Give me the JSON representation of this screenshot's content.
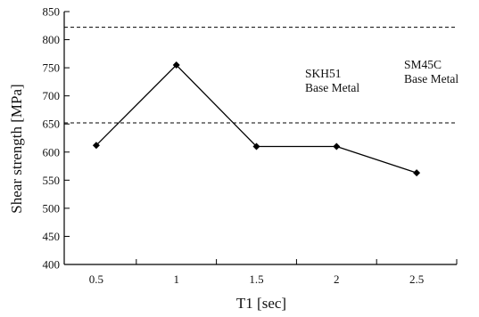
{
  "chart_data": {
    "type": "line",
    "title": "",
    "xlabel": "T1 [sec]",
    "ylabel": "Shear strength [MPa]",
    "xlim": [
      0.3,
      2.75
    ],
    "ylim": [
      400,
      850
    ],
    "x_ticks": [
      "0.5",
      "1",
      "1.5",
      "2",
      "2.5"
    ],
    "y_ticks": [
      "400",
      "450",
      "500",
      "550",
      "600",
      "650",
      "700",
      "750",
      "800",
      "850"
    ],
    "grid": false,
    "series": [
      {
        "x": [
          0.5,
          1.0,
          1.5,
          2.0,
          2.5
        ],
        "y": [
          612,
          755,
          610,
          610,
          563
        ],
        "color": "#000000",
        "marker": "diamond"
      }
    ],
    "reference_lines": [
      {
        "y": 822,
        "style": "dashed",
        "label": [
          "SM45C",
          "Base Metal"
        ]
      },
      {
        "y": 652,
        "style": "dashed",
        "label": [
          "SKH51",
          "Base Metal"
        ]
      }
    ]
  }
}
